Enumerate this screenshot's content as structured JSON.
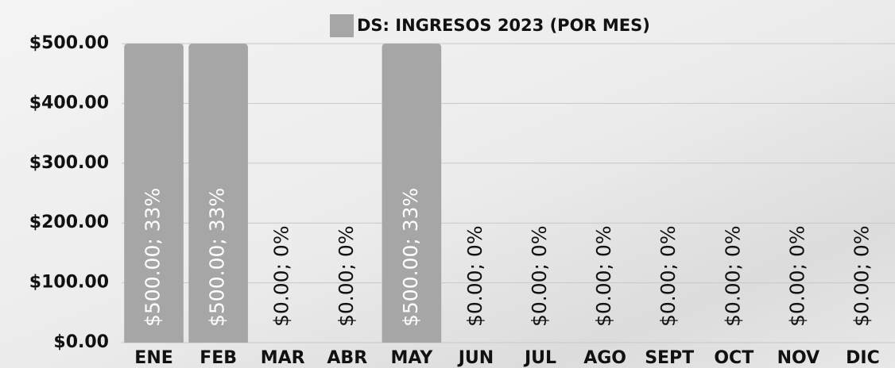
{
  "chart_data": {
    "type": "bar",
    "categories": [
      "ENE",
      "FEB",
      "MAR",
      "ABR",
      "MAY",
      "JUN",
      "JUL",
      "AGO",
      "SEPT",
      "OCT",
      "NOV",
      "DIC"
    ],
    "series": [
      {
        "name": "DS: INGRESOS 2023 (POR MES)",
        "color": "#a6a6a6",
        "values": [
          500,
          500,
          0,
          0,
          500,
          0,
          0,
          0,
          0,
          0,
          0,
          0
        ],
        "value_labels": [
          "$500.00; 33%",
          "$500.00; 33%",
          "$0.00; 0%",
          "$0.00; 0%",
          "$500.00; 33%",
          "$0.00; 0%",
          "$0.00; 0%",
          "$0.00; 0%",
          "$0.00; 0%",
          "$0.00; 0%",
          "$0.00; 0%",
          "$0.00; 0%"
        ]
      }
    ],
    "ylim": [
      0,
      500
    ],
    "yticks": [
      {
        "value": 0,
        "label": "$0.00"
      },
      {
        "value": 100,
        "label": "$100.00"
      },
      {
        "value": 200,
        "label": "$200.00"
      },
      {
        "value": 300,
        "label": "$300.00"
      },
      {
        "value": 400,
        "label": "$400.00"
      },
      {
        "value": 500,
        "label": "$500.00"
      }
    ],
    "grid": true
  }
}
